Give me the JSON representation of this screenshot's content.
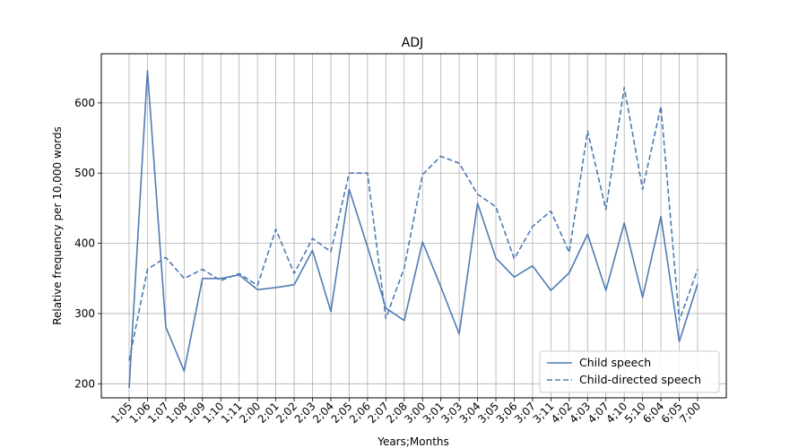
{
  "chart_data": {
    "type": "line",
    "title": "ADJ",
    "xlabel": "Years;Months",
    "ylabel": "Relative frequency per 10,000 words",
    "categories": [
      "1;05",
      "1;06",
      "1;07",
      "1;08",
      "1;09",
      "1;10",
      "1;11",
      "2;00",
      "2;01",
      "2;02",
      "2;03",
      "2;04",
      "2;05",
      "2;06",
      "2;07",
      "2;08",
      "3;00",
      "3;01",
      "3;03",
      "3;04",
      "3;05",
      "3;06",
      "3;07",
      "3;11",
      "4;02",
      "4;03",
      "4;07",
      "4;10",
      "5;10",
      "6;04",
      "6;05",
      "7;00"
    ],
    "ylim": [
      180,
      670
    ],
    "yticks": [
      200,
      300,
      400,
      500,
      600
    ],
    "grid": true,
    "legend_position": "bottom-right",
    "colors": {
      "series": "#4f7cb3"
    },
    "series": [
      {
        "name": "Child speech",
        "line_style": "solid",
        "values": [
          194,
          646,
          281,
          218,
          350,
          350,
          355,
          334,
          337,
          341,
          390,
          303,
          477,
          395,
          308,
          290,
          402,
          338,
          271,
          457,
          379,
          352,
          368,
          333,
          358,
          413,
          333,
          429,
          323,
          438,
          260,
          342
        ]
      },
      {
        "name": "Child-directed speech",
        "line_style": "dashed",
        "values": [
          233,
          363,
          380,
          350,
          363,
          347,
          357,
          340,
          420,
          357,
          407,
          388,
          500,
          500,
          293,
          365,
          498,
          524,
          514,
          470,
          452,
          378,
          424,
          446,
          387,
          560,
          448,
          622,
          477,
          595,
          290,
          363
        ]
      }
    ]
  }
}
